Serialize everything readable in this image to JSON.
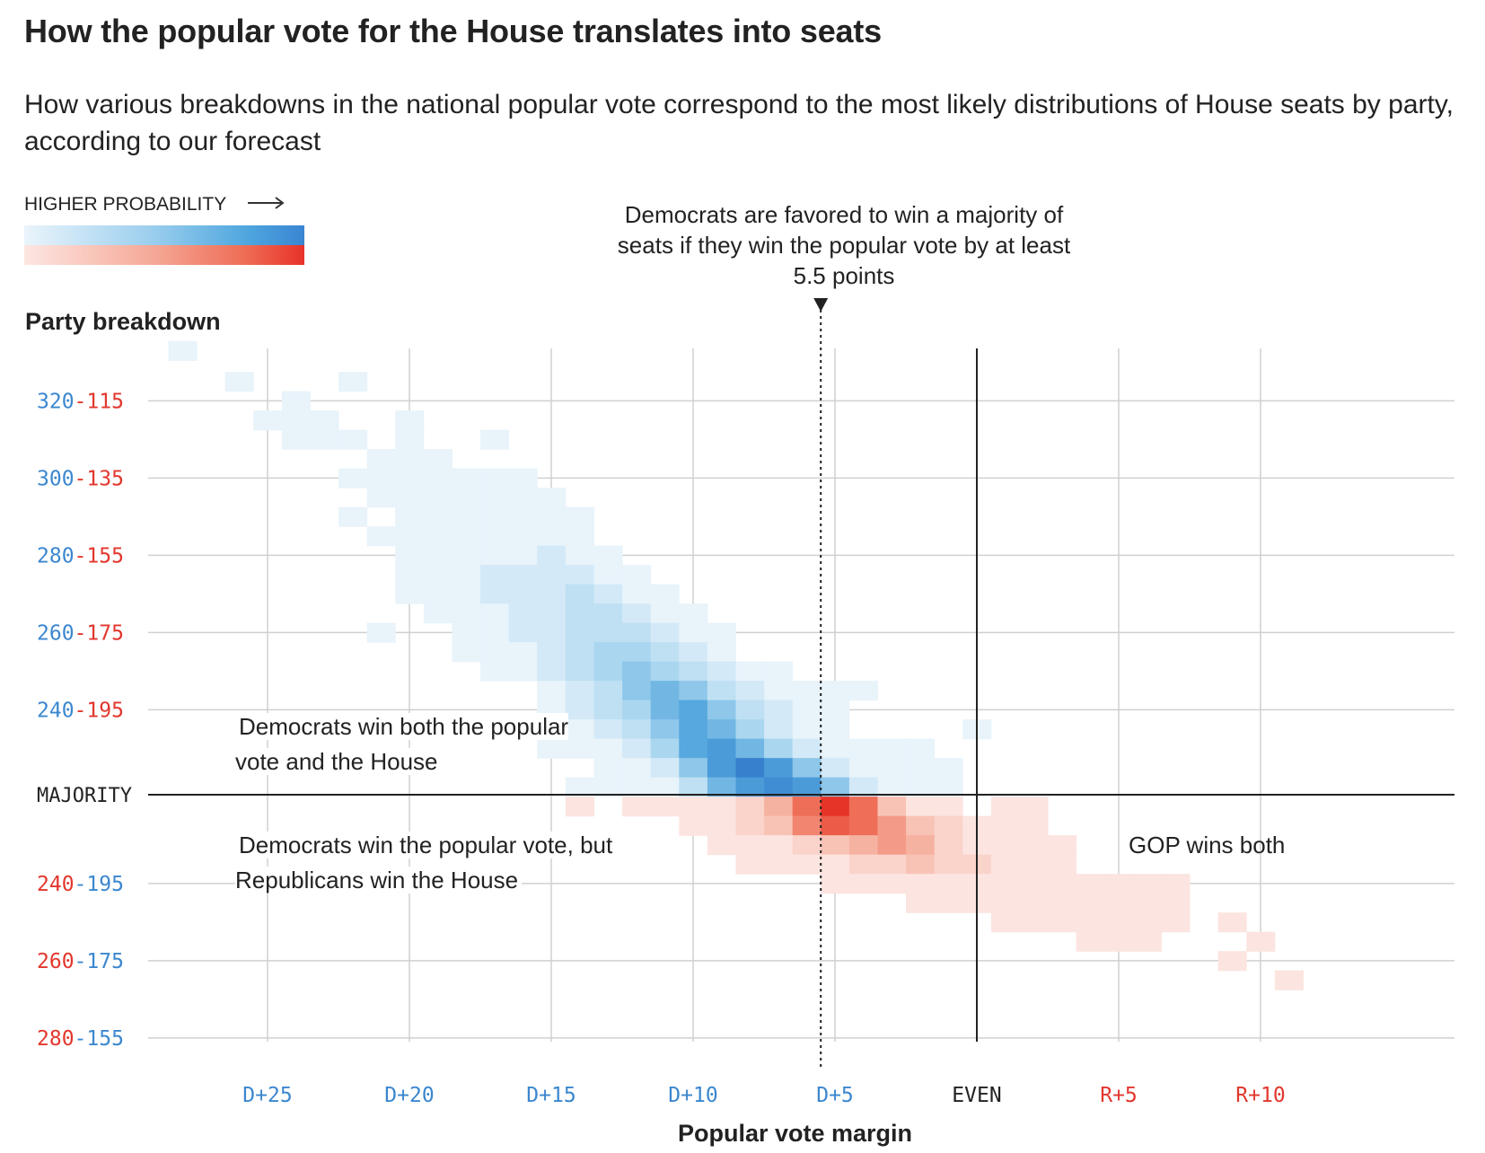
{
  "title": "How the popular vote for the House translates into seats",
  "subtitle": "How various breakdowns in the national popular vote correspond to the most likely distributions of House seats by party, according to our forecast",
  "legend": {
    "label": "HIGHER PROBABILITY"
  },
  "colors": {
    "dem": "#3a85d2",
    "rep": "#e8322a",
    "dem_label": "#3b87cf",
    "rep_label": "#e2372d",
    "grid": "#d0d0d0",
    "axis": "#222222"
  },
  "annotations": {
    "threshold": "Democrats are favored to win a majority of seats if they win the popular vote by at least 5.5 points",
    "dem_both": "Democrats win both the popular vote and the House",
    "dem_split": "Democrats win the popular vote, but Republicans win the House",
    "gop_both": "GOP wins both"
  },
  "chart_data": {
    "type": "heatmap",
    "title": "How the popular vote for the House translates into seats",
    "xlabel": "Popular vote margin",
    "ylabel": "Party breakdown",
    "x_range": [
      "D+29",
      "R+13"
    ],
    "x_ticks": [
      {
        "label": "D+25",
        "value": -25,
        "party": "dem"
      },
      {
        "label": "D+20",
        "value": -20,
        "party": "dem"
      },
      {
        "label": "D+15",
        "value": -15,
        "party": "dem"
      },
      {
        "label": "D+10",
        "value": -10,
        "party": "dem"
      },
      {
        "label": "D+5",
        "value": -5,
        "party": "dem"
      },
      {
        "label": "EVEN",
        "value": 0,
        "party": "even"
      },
      {
        "label": "R+5",
        "value": 5,
        "party": "rep"
      },
      {
        "label": "R+10",
        "value": 10,
        "party": "rep"
      }
    ],
    "y_ticks": [
      {
        "first": "320",
        "second": "115",
        "dem_seats": 320,
        "order": "dem-rep"
      },
      {
        "first": "300",
        "second": "135",
        "dem_seats": 300,
        "order": "dem-rep"
      },
      {
        "first": "280",
        "second": "155",
        "dem_seats": 280,
        "order": "dem-rep"
      },
      {
        "first": "260",
        "second": "175",
        "dem_seats": 260,
        "order": "dem-rep"
      },
      {
        "first": "240",
        "second": "195",
        "dem_seats": 240,
        "order": "dem-rep"
      },
      {
        "label": "MAJORITY",
        "dem_seats": 218
      },
      {
        "first": "240",
        "second": "195",
        "dem_seats": 195,
        "order": "rep-dem"
      },
      {
        "first": "260",
        "second": "175",
        "dem_seats": 175,
        "order": "rep-dem"
      },
      {
        "first": "280",
        "second": "155",
        "dem_seats": 155,
        "order": "rep-dem"
      }
    ],
    "threshold_margin": -5.5,
    "majority_dem_seats": 218,
    "cell_encoding": "[dem margin points (negative = D), dem seats, probability intensity 1-10]",
    "dem_cells": [
      [
        -28,
        333,
        1
      ],
      [
        -26,
        325,
        1
      ],
      [
        -22,
        325,
        1
      ],
      [
        -24,
        320,
        1
      ],
      [
        -25,
        315,
        1
      ],
      [
        -24,
        315,
        1
      ],
      [
        -23,
        315,
        1
      ],
      [
        -20,
        315,
        1
      ],
      [
        -24,
        310,
        1
      ],
      [
        -23,
        310,
        1
      ],
      [
        -22,
        310,
        1
      ],
      [
        -20,
        310,
        1
      ],
      [
        -17,
        310,
        1
      ],
      [
        -21,
        305,
        1
      ],
      [
        -20,
        305,
        1
      ],
      [
        -19,
        305,
        1
      ],
      [
        -22,
        300,
        1
      ],
      [
        -21,
        300,
        1
      ],
      [
        -20,
        300,
        1
      ],
      [
        -19,
        300,
        1
      ],
      [
        -18,
        300,
        1
      ],
      [
        -17,
        300,
        1
      ],
      [
        -16,
        300,
        1
      ],
      [
        -21,
        295,
        1
      ],
      [
        -20,
        295,
        1
      ],
      [
        -19,
        295,
        1
      ],
      [
        -18,
        295,
        1
      ],
      [
        -17,
        295,
        1
      ],
      [
        -16,
        295,
        1
      ],
      [
        -15,
        295,
        1
      ],
      [
        -22,
        290,
        1
      ],
      [
        -20,
        290,
        1
      ],
      [
        -19,
        290,
        1
      ],
      [
        -18,
        290,
        1
      ],
      [
        -17,
        290,
        1
      ],
      [
        -16,
        290,
        1
      ],
      [
        -15,
        290,
        1
      ],
      [
        -14,
        290,
        1
      ],
      [
        -21,
        285,
        1
      ],
      [
        -20,
        285,
        1
      ],
      [
        -19,
        285,
        1
      ],
      [
        -18,
        285,
        1
      ],
      [
        -17,
        285,
        1
      ],
      [
        -16,
        285,
        1
      ],
      [
        -15,
        285,
        1
      ],
      [
        -14,
        285,
        1
      ],
      [
        -20,
        280,
        1
      ],
      [
        -19,
        280,
        1
      ],
      [
        -18,
        280,
        1
      ],
      [
        -17,
        280,
        1
      ],
      [
        -16,
        280,
        1
      ],
      [
        -15,
        280,
        2
      ],
      [
        -14,
        280,
        1
      ],
      [
        -13,
        280,
        1
      ],
      [
        -20,
        275,
        1
      ],
      [
        -19,
        275,
        1
      ],
      [
        -18,
        275,
        1
      ],
      [
        -17,
        275,
        2
      ],
      [
        -16,
        275,
        2
      ],
      [
        -15,
        275,
        2
      ],
      [
        -14,
        275,
        2
      ],
      [
        -13,
        275,
        1
      ],
      [
        -12,
        275,
        1
      ],
      [
        -20,
        270,
        1
      ],
      [
        -19,
        270,
        1
      ],
      [
        -18,
        270,
        1
      ],
      [
        -17,
        270,
        2
      ],
      [
        -16,
        270,
        2
      ],
      [
        -15,
        270,
        2
      ],
      [
        -14,
        270,
        3
      ],
      [
        -13,
        270,
        2
      ],
      [
        -12,
        270,
        1
      ],
      [
        -11,
        270,
        1
      ],
      [
        -19,
        265,
        1
      ],
      [
        -18,
        265,
        1
      ],
      [
        -17,
        265,
        1
      ],
      [
        -16,
        265,
        2
      ],
      [
        -15,
        265,
        2
      ],
      [
        -14,
        265,
        3
      ],
      [
        -13,
        265,
        3
      ],
      [
        -12,
        265,
        2
      ],
      [
        -11,
        265,
        1
      ],
      [
        -10,
        265,
        1
      ],
      [
        -21,
        260,
        1
      ],
      [
        -18,
        260,
        1
      ],
      [
        -17,
        260,
        1
      ],
      [
        -16,
        260,
        2
      ],
      [
        -15,
        260,
        2
      ],
      [
        -14,
        260,
        3
      ],
      [
        -13,
        260,
        3
      ],
      [
        -12,
        260,
        3
      ],
      [
        -11,
        260,
        2
      ],
      [
        -10,
        260,
        1
      ],
      [
        -9,
        260,
        1
      ],
      [
        -18,
        255,
        1
      ],
      [
        -17,
        255,
        1
      ],
      [
        -16,
        255,
        1
      ],
      [
        -15,
        255,
        2
      ],
      [
        -14,
        255,
        3
      ],
      [
        -13,
        255,
        4
      ],
      [
        -12,
        255,
        4
      ],
      [
        -11,
        255,
        3
      ],
      [
        -10,
        255,
        2
      ],
      [
        -9,
        255,
        1
      ],
      [
        -17,
        250,
        1
      ],
      [
        -16,
        250,
        1
      ],
      [
        -15,
        250,
        2
      ],
      [
        -14,
        250,
        3
      ],
      [
        -13,
        250,
        4
      ],
      [
        -12,
        250,
        5
      ],
      [
        -11,
        250,
        4
      ],
      [
        -10,
        250,
        3
      ],
      [
        -9,
        250,
        2
      ],
      [
        -8,
        250,
        1
      ],
      [
        -7,
        250,
        1
      ],
      [
        -15,
        245,
        1
      ],
      [
        -14,
        245,
        2
      ],
      [
        -13,
        245,
        3
      ],
      [
        -12,
        245,
        5
      ],
      [
        -11,
        245,
        6
      ],
      [
        -10,
        245,
        5
      ],
      [
        -9,
        245,
        3
      ],
      [
        -8,
        245,
        2
      ],
      [
        -7,
        245,
        1
      ],
      [
        -6,
        245,
        1
      ],
      [
        -5,
        245,
        1
      ],
      [
        -4,
        245,
        1
      ],
      [
        -15,
        240,
        1
      ],
      [
        -14,
        240,
        2
      ],
      [
        -13,
        240,
        3
      ],
      [
        -12,
        240,
        4
      ],
      [
        -11,
        240,
        6
      ],
      [
        -10,
        240,
        7
      ],
      [
        -9,
        240,
        5
      ],
      [
        -8,
        240,
        3
      ],
      [
        -7,
        240,
        2
      ],
      [
        -6,
        240,
        1
      ],
      [
        -5,
        240,
        1
      ],
      [
        -15,
        235,
        1
      ],
      [
        -14,
        235,
        1
      ],
      [
        -13,
        235,
        2
      ],
      [
        -12,
        235,
        3
      ],
      [
        -11,
        235,
        5
      ],
      [
        -10,
        235,
        7
      ],
      [
        -9,
        235,
        6
      ],
      [
        -8,
        235,
        4
      ],
      [
        -7,
        235,
        2
      ],
      [
        -6,
        235,
        1
      ],
      [
        -5,
        235,
        1
      ],
      [
        0,
        235,
        1
      ],
      [
        -15,
        230,
        1
      ],
      [
        -14,
        230,
        1
      ],
      [
        -13,
        230,
        1
      ],
      [
        -12,
        230,
        2
      ],
      [
        -11,
        230,
        4
      ],
      [
        -10,
        230,
        7
      ],
      [
        -9,
        230,
        8
      ],
      [
        -8,
        230,
        6
      ],
      [
        -7,
        230,
        4
      ],
      [
        -6,
        230,
        2
      ],
      [
        -5,
        230,
        1
      ],
      [
        -4,
        230,
        1
      ],
      [
        -3,
        230,
        1
      ],
      [
        -2,
        230,
        1
      ],
      [
        -13,
        225,
        1
      ],
      [
        -12,
        225,
        1
      ],
      [
        -11,
        225,
        2
      ],
      [
        -10,
        225,
        5
      ],
      [
        -9,
        225,
        8
      ],
      [
        -8,
        225,
        10
      ],
      [
        -7,
        225,
        8
      ],
      [
        -6,
        225,
        5
      ],
      [
        -5,
        225,
        2
      ],
      [
        -4,
        225,
        1
      ],
      [
        -3,
        225,
        1
      ],
      [
        -2,
        225,
        1
      ],
      [
        -1,
        225,
        1
      ],
      [
        -14,
        220,
        1
      ],
      [
        -13,
        220,
        1
      ],
      [
        -12,
        220,
        1
      ],
      [
        -11,
        220,
        1
      ],
      [
        -10,
        220,
        3
      ],
      [
        -9,
        220,
        6
      ],
      [
        -8,
        220,
        8
      ],
      [
        -7,
        220,
        9
      ],
      [
        -6,
        220,
        8
      ],
      [
        -5,
        220,
        5
      ],
      [
        -4,
        220,
        2
      ],
      [
        -3,
        220,
        1
      ],
      [
        -2,
        220,
        1
      ],
      [
        -1,
        220,
        1
      ]
    ],
    "rep_cells": [
      [
        -14,
        215,
        1
      ],
      [
        -12,
        215,
        1
      ],
      [
        -11,
        215,
        1
      ],
      [
        -10,
        215,
        1
      ],
      [
        -9,
        215,
        1
      ],
      [
        -8,
        215,
        2
      ],
      [
        -7,
        215,
        4
      ],
      [
        -6,
        215,
        7
      ],
      [
        -5,
        215,
        10
      ],
      [
        -4,
        215,
        7
      ],
      [
        -3,
        215,
        3
      ],
      [
        -2,
        215,
        1
      ],
      [
        -1,
        215,
        1
      ],
      [
        1,
        215,
        1
      ],
      [
        2,
        215,
        1
      ],
      [
        -10,
        210,
        1
      ],
      [
        -9,
        210,
        1
      ],
      [
        -8,
        210,
        2
      ],
      [
        -7,
        210,
        3
      ],
      [
        -6,
        210,
        6
      ],
      [
        -5,
        210,
        8
      ],
      [
        -4,
        210,
        7
      ],
      [
        -3,
        210,
        5
      ],
      [
        -2,
        210,
        3
      ],
      [
        -1,
        210,
        2
      ],
      [
        0,
        210,
        1
      ],
      [
        1,
        210,
        1
      ],
      [
        2,
        210,
        1
      ],
      [
        -9,
        205,
        1
      ],
      [
        -8,
        205,
        1
      ],
      [
        -7,
        205,
        1
      ],
      [
        -6,
        205,
        2
      ],
      [
        -5,
        205,
        3
      ],
      [
        -4,
        205,
        4
      ],
      [
        -3,
        205,
        5
      ],
      [
        -2,
        205,
        4
      ],
      [
        -1,
        205,
        2
      ],
      [
        0,
        205,
        1
      ],
      [
        1,
        205,
        1
      ],
      [
        2,
        205,
        1
      ],
      [
        3,
        205,
        1
      ],
      [
        -8,
        200,
        1
      ],
      [
        -7,
        200,
        1
      ],
      [
        -6,
        200,
        1
      ],
      [
        -5,
        200,
        1
      ],
      [
        -4,
        200,
        2
      ],
      [
        -3,
        200,
        2
      ],
      [
        -2,
        200,
        3
      ],
      [
        -1,
        200,
        2
      ],
      [
        0,
        200,
        2
      ],
      [
        1,
        200,
        1
      ],
      [
        2,
        200,
        1
      ],
      [
        3,
        200,
        1
      ],
      [
        -5,
        195,
        1
      ],
      [
        -4,
        195,
        1
      ],
      [
        -3,
        195,
        1
      ],
      [
        -2,
        195,
        1
      ],
      [
        -1,
        195,
        1
      ],
      [
        0,
        195,
        1
      ],
      [
        1,
        195,
        1
      ],
      [
        2,
        195,
        1
      ],
      [
        3,
        195,
        1
      ],
      [
        4,
        195,
        1
      ],
      [
        5,
        195,
        1
      ],
      [
        6,
        195,
        1
      ],
      [
        7,
        195,
        1
      ],
      [
        -2,
        190,
        1
      ],
      [
        -1,
        190,
        1
      ],
      [
        0,
        190,
        1
      ],
      [
        1,
        190,
        1
      ],
      [
        2,
        190,
        1
      ],
      [
        3,
        190,
        1
      ],
      [
        4,
        190,
        1
      ],
      [
        5,
        190,
        1
      ],
      [
        6,
        190,
        1
      ],
      [
        7,
        190,
        1
      ],
      [
        1,
        185,
        1
      ],
      [
        2,
        185,
        1
      ],
      [
        3,
        185,
        1
      ],
      [
        4,
        185,
        1
      ],
      [
        5,
        185,
        1
      ],
      [
        6,
        185,
        1
      ],
      [
        7,
        185,
        1
      ],
      [
        9,
        185,
        1
      ],
      [
        4,
        180,
        1
      ],
      [
        5,
        180,
        1
      ],
      [
        6,
        180,
        1
      ],
      [
        10,
        180,
        1
      ],
      [
        9,
        175,
        1
      ],
      [
        11,
        170,
        1
      ]
    ]
  }
}
